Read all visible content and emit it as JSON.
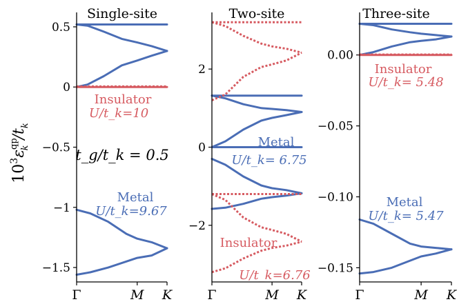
{
  "figure": {
    "ylabel": "10³ε_k^qp / t_k",
    "ylabel_main": "10",
    "ylabel_exp": "3",
    "ylabel_eps": "ε",
    "ylabel_sup": "qp",
    "ylabel_sub": "k",
    "ylabel_tail": "/t",
    "ylabel_tail_sub": "k"
  },
  "colors": {
    "metal": "#4a6db5",
    "insulator": "#d65a60",
    "axis": "#000000"
  },
  "chart_data": [
    {
      "type": "line",
      "title": "Single-site",
      "x_ticks": [
        "Γ",
        "M",
        "K"
      ],
      "ylim": [
        -1.62,
        0.62
      ],
      "y_ticks": [
        0.5,
        0,
        -0.5,
        -1,
        -1.5
      ],
      "y_tick_labels": [
        "0.5",
        "0",
        "−0.5",
        "−1",
        "−1.5"
      ],
      "annotations": [
        {
          "text": "Insulator",
          "style": "insulator"
        },
        {
          "text": "U/t_k=10",
          "style": "insulator"
        },
        {
          "text": "t_g/t_k = 0.5",
          "style": "plain"
        },
        {
          "text": "Metal",
          "style": "metal"
        },
        {
          "text": "U/t_k=9.67",
          "style": "metal"
        }
      ],
      "series": [
        {
          "group": "metal",
          "dashed": false,
          "x": [
            0,
            0.67,
            1
          ],
          "y": [
            0.52,
            0.52,
            0.52
          ]
        },
        {
          "group": "metal",
          "dashed": false,
          "x": [
            0,
            0.12,
            0.3,
            0.5,
            0.67,
            0.83,
            1
          ],
          "y": [
            0.52,
            0.51,
            0.46,
            0.4,
            0.37,
            0.34,
            0.3
          ]
        },
        {
          "group": "metal",
          "dashed": false,
          "x": [
            0,
            0.12,
            0.3,
            0.5,
            0.67,
            0.83,
            1
          ],
          "y": [
            0.0,
            0.02,
            0.09,
            0.18,
            0.22,
            0.26,
            0.3
          ]
        },
        {
          "group": "insulator",
          "dashed": false,
          "x": [
            0,
            0.67,
            1
          ],
          "y": [
            0.0,
            0.0,
            0.0
          ]
        },
        {
          "group": "insulator",
          "dashed": true,
          "x": [
            0,
            0.67,
            1
          ],
          "y": [
            0.005,
            0.005,
            0.005
          ]
        },
        {
          "group": "metal",
          "dashed": false,
          "x": [
            0,
            0.15,
            0.35,
            0.55,
            0.67,
            0.83,
            1
          ],
          "y": [
            -1.02,
            -1.05,
            -1.12,
            -1.22,
            -1.26,
            -1.29,
            -1.34
          ]
        },
        {
          "group": "metal",
          "dashed": false,
          "x": [
            0,
            0.15,
            0.35,
            0.55,
            0.67,
            0.83,
            1
          ],
          "y": [
            -1.56,
            -1.54,
            -1.5,
            -1.45,
            -1.42,
            -1.4,
            -1.34
          ]
        }
      ]
    },
    {
      "type": "line",
      "title": "Two-site",
      "x_ticks": [
        "Γ",
        "M",
        "K"
      ],
      "ylim": [
        -3.45,
        3.45
      ],
      "y_ticks": [
        2,
        0,
        -2
      ],
      "y_tick_labels": [
        "2",
        "0",
        "−2"
      ],
      "annotations": [
        {
          "text": "Metal",
          "style": "metal"
        },
        {
          "text": "U/t_k= 6.75",
          "style": "metal"
        },
        {
          "text": "Insulator",
          "style": "insulator"
        },
        {
          "text": "U/t_k=6.76",
          "style": "insulator"
        }
      ],
      "series": [
        {
          "group": "metal",
          "dashed": false,
          "x": [
            0,
            0.67,
            1
          ],
          "y": [
            1.32,
            1.32,
            1.32
          ]
        },
        {
          "group": "metal",
          "dashed": false,
          "x": [
            0,
            0.15,
            0.35,
            0.55,
            0.67,
            0.83,
            1
          ],
          "y": [
            1.32,
            1.25,
            1.1,
            1.0,
            0.98,
            0.95,
            0.9
          ]
        },
        {
          "group": "metal",
          "dashed": false,
          "x": [
            0,
            0.15,
            0.35,
            0.55,
            0.67,
            0.83,
            1
          ],
          "y": [
            0.0,
            0.15,
            0.45,
            0.68,
            0.75,
            0.82,
            0.9
          ]
        },
        {
          "group": "metal",
          "dashed": false,
          "x": [
            0,
            1
          ],
          "y": [
            0.0,
            0.0
          ]
        },
        {
          "group": "metal",
          "dashed": false,
          "x": [
            0,
            0.15,
            0.35,
            0.55,
            0.67,
            0.83,
            1
          ],
          "y": [
            -0.3,
            -0.45,
            -0.75,
            -0.98,
            -1.05,
            -1.1,
            -1.18
          ]
        },
        {
          "group": "metal",
          "dashed": false,
          "x": [
            0,
            0.15,
            0.35,
            0.55,
            0.67,
            0.83,
            1
          ],
          "y": [
            -1.58,
            -1.55,
            -1.45,
            -1.32,
            -1.28,
            -1.24,
            -1.18
          ]
        },
        {
          "group": "insulator",
          "dashed": true,
          "x": [
            0,
            1
          ],
          "y": [
            3.2,
            3.2
          ]
        },
        {
          "group": "insulator",
          "dashed": true,
          "x": [
            0,
            0.15,
            0.35,
            0.55,
            0.67,
            0.83,
            1
          ],
          "y": [
            3.2,
            3.1,
            2.85,
            2.65,
            2.58,
            2.52,
            2.42
          ]
        },
        {
          "group": "insulator",
          "dashed": true,
          "x": [
            0,
            0.15,
            0.35,
            0.55,
            0.67,
            0.83,
            1
          ],
          "y": [
            1.2,
            1.35,
            1.8,
            2.05,
            2.12,
            2.22,
            2.42
          ]
        },
        {
          "group": "insulator",
          "dashed": true,
          "x": [
            0,
            1
          ],
          "y": [
            -1.2,
            -1.2
          ]
        },
        {
          "group": "insulator",
          "dashed": true,
          "x": [
            0,
            0.15,
            0.35,
            0.55,
            0.67,
            0.83,
            1
          ],
          "y": [
            -1.2,
            -1.35,
            -1.8,
            -2.05,
            -2.12,
            -2.22,
            -2.42
          ]
        },
        {
          "group": "insulator",
          "dashed": true,
          "x": [
            0,
            0.15,
            0.35,
            0.55,
            0.67,
            0.83,
            1
          ],
          "y": [
            -3.2,
            -3.1,
            -2.85,
            -2.65,
            -2.58,
            -2.52,
            -2.42
          ]
        }
      ]
    },
    {
      "type": "line",
      "title": "Three-site",
      "x_ticks": [
        "Γ",
        "M",
        "K"
      ],
      "ylim": [
        -0.16,
        0.03
      ],
      "y_ticks": [
        0.0,
        -0.05,
        -0.1,
        -0.15
      ],
      "y_tick_labels": [
        "0.00",
        "−0.05",
        "−0.10",
        "−0.15"
      ],
      "annotations": [
        {
          "text": "Insulator",
          "style": "insulator"
        },
        {
          "text": "U/t_k= 5.48",
          "style": "insulator"
        },
        {
          "text": "Metal",
          "style": "metal"
        },
        {
          "text": "U/t_k= 5.47",
          "style": "metal"
        }
      ],
      "series": [
        {
          "group": "metal",
          "dashed": false,
          "x": [
            0,
            0.67,
            1
          ],
          "y": [
            0.022,
            0.022,
            0.022
          ]
        },
        {
          "group": "metal",
          "dashed": false,
          "x": [
            0,
            0.15,
            0.35,
            0.55,
            0.67,
            0.83,
            1
          ],
          "y": [
            0.022,
            0.021,
            0.018,
            0.016,
            0.015,
            0.014,
            0.013
          ]
        },
        {
          "group": "metal",
          "dashed": false,
          "x": [
            0,
            0.15,
            0.35,
            0.55,
            0.67,
            0.83,
            1
          ],
          "y": [
            0.0,
            0.002,
            0.006,
            0.009,
            0.01,
            0.011,
            0.013
          ]
        },
        {
          "group": "insulator",
          "dashed": false,
          "x": [
            0,
            0.67,
            1
          ],
          "y": [
            0.0,
            0.0,
            0.0
          ]
        },
        {
          "group": "insulator",
          "dashed": true,
          "x": [
            0,
            0.67,
            1
          ],
          "y": [
            0.0003,
            0.0003,
            0.0003
          ]
        },
        {
          "group": "metal",
          "dashed": false,
          "x": [
            0,
            0.15,
            0.35,
            0.55,
            0.67,
            0.83,
            1
          ],
          "y": [
            -0.116,
            -0.119,
            -0.126,
            -0.133,
            -0.135,
            -0.136,
            -0.137
          ]
        },
        {
          "group": "metal",
          "dashed": false,
          "x": [
            0,
            0.15,
            0.35,
            0.55,
            0.67,
            0.83,
            1
          ],
          "y": [
            -0.154,
            -0.153,
            -0.15,
            -0.145,
            -0.142,
            -0.14,
            -0.137
          ]
        }
      ]
    }
  ]
}
